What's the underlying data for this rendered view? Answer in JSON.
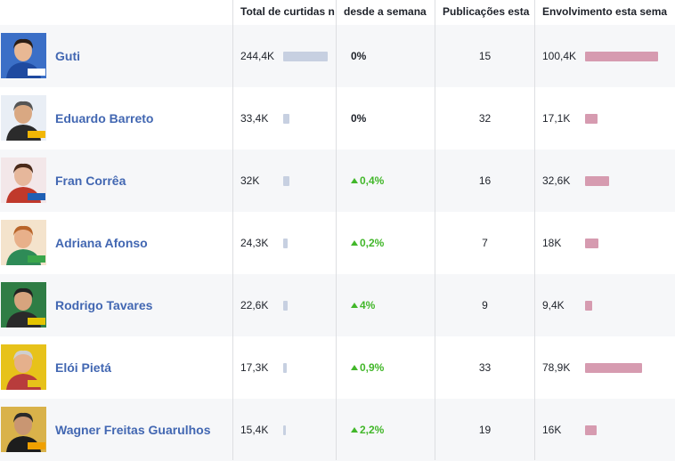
{
  "headers": {
    "likes": "Total de curtidas n",
    "growth": "desde a semana",
    "posts": "Publicações esta",
    "engagement": "Envolvimento esta sema"
  },
  "colors": {
    "name_link": "#4267b2",
    "likes_bar": "#c7d0e1",
    "engagement_bar": "#d69bb0",
    "growth_up": "#42b72a"
  },
  "rows": [
    {
      "name": "Guti",
      "likes": "244,4K",
      "likes_value": 244.4,
      "growth": "0%",
      "growth_up": false,
      "posts": "15",
      "engagement": "100,4K",
      "engagement_value": 100.4
    },
    {
      "name": "Eduardo Barreto",
      "likes": "33,4K",
      "likes_value": 33.4,
      "growth": "0%",
      "growth_up": false,
      "posts": "32",
      "engagement": "17,1K",
      "engagement_value": 17.1
    },
    {
      "name": "Fran Corrêa",
      "likes": "32K",
      "likes_value": 32,
      "growth": "0,4%",
      "growth_up": true,
      "posts": "16",
      "engagement": "32,6K",
      "engagement_value": 32.6
    },
    {
      "name": "Adriana Afonso",
      "likes": "24,3K",
      "likes_value": 24.3,
      "growth": "0,2%",
      "growth_up": true,
      "posts": "7",
      "engagement": "18K",
      "engagement_value": 18
    },
    {
      "name": "Rodrigo Tavares",
      "likes": "22,6K",
      "likes_value": 22.6,
      "growth": "4%",
      "growth_up": true,
      "posts": "9",
      "engagement": "9,4K",
      "engagement_value": 9.4
    },
    {
      "name": "Elói Pietá",
      "likes": "17,3K",
      "likes_value": 17.3,
      "growth": "0,9%",
      "growth_up": true,
      "posts": "33",
      "engagement": "78,9K",
      "engagement_value": 78.9
    },
    {
      "name": "Wagner Freitas Guarulhos",
      "likes": "15,4K",
      "likes_value": 15.4,
      "growth": "2,2%",
      "growth_up": true,
      "posts": "19",
      "engagement": "16K",
      "engagement_value": 16
    }
  ]
}
